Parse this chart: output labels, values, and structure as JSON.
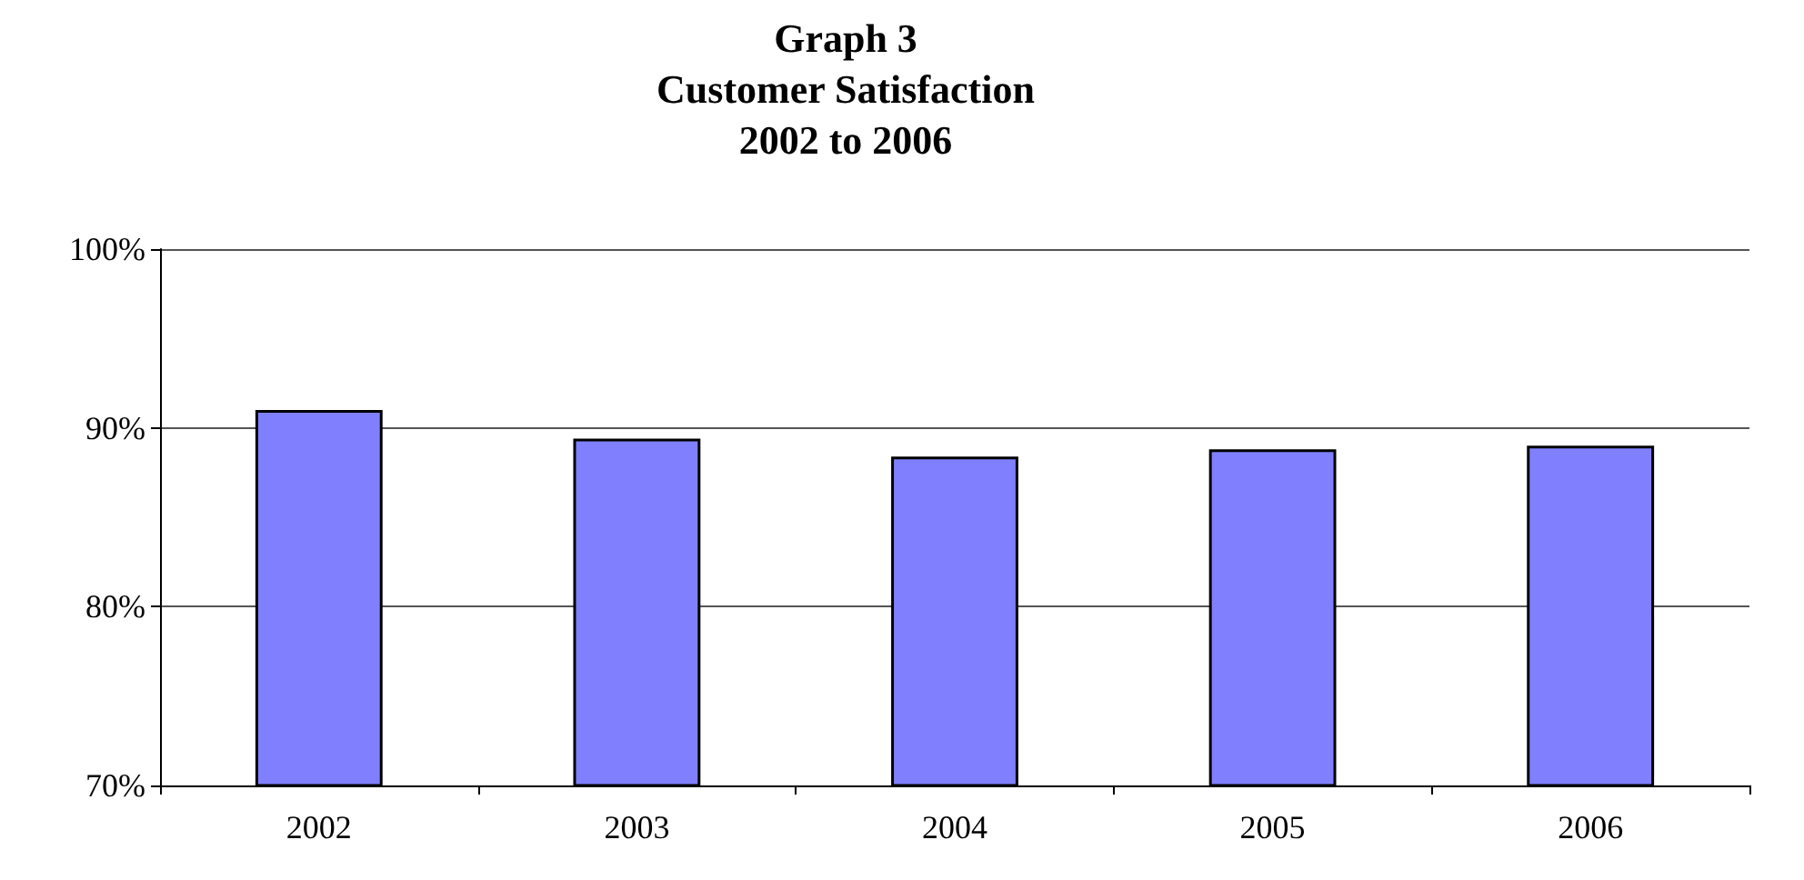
{
  "chart_data": {
    "type": "bar",
    "title": "Graph 3\nCustomer Satisfaction\n2002 to 2006",
    "categories": [
      "2002",
      "2003",
      "2004",
      "2005",
      "2006"
    ],
    "values": [
      91.0,
      89.4,
      88.4,
      88.8,
      89.0
    ],
    "color": "#8080ff",
    "ylim": [
      70,
      100
    ],
    "yticks": [
      {
        "value": 70,
        "label": "70%"
      },
      {
        "value": 80,
        "label": "80%"
      },
      {
        "value": 90,
        "label": "90%"
      },
      {
        "value": 100,
        "label": "100%"
      }
    ],
    "grid": "y"
  }
}
